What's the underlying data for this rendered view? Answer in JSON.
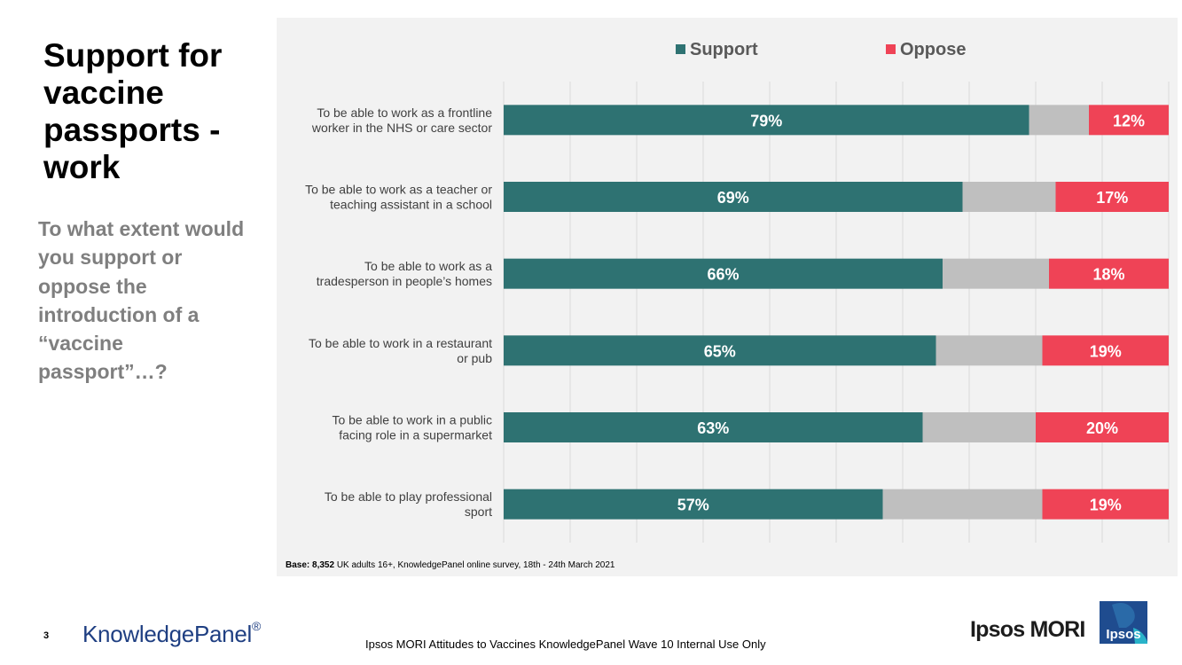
{
  "slide": {
    "title": "Support for vaccine passports - work",
    "question": "To what extent would you support or oppose the introduction of a “vaccine passport”…?",
    "base_bold": "Base: 8,352",
    "base_rest": " UK adults 16+, KnowledgePanel online survey, 18th - 24th March 2021",
    "page_number": "3",
    "footer": "Ipsos MORI Attitudes to Vaccines KnowledgePanel Wave 10 Internal Use Only"
  },
  "logos": {
    "knowledgepanel": "KnowledgePanel",
    "knowledgepanel_mark": "®",
    "ipsos_mori": "Ipsos MORI",
    "ipsos_badge": "Ipsos"
  },
  "colors": {
    "support": "#2e7272",
    "neither": "#bfbfbf",
    "oppose": "#ef4356",
    "panel": "#f2f2f2",
    "grid": "#d9d9d9",
    "ipsos_badge": "#1f4c8f",
    "ipsos_accent": "#29b3c9"
  },
  "chart_data": {
    "type": "bar",
    "orientation": "horizontal",
    "stacked": true,
    "legend_position": "top",
    "grid": true,
    "xlim": [
      0,
      100
    ],
    "categories": [
      "To be able to work as a frontline worker in the NHS or care sector",
      "To be able to work as a teacher or teaching assistant in a school",
      "To be able to work as a tradesperson in people’s homes",
      "To be able to work in a restaurant or pub",
      "To be able to work in a public facing role in a supermarket",
      "To be able to play professional sport"
    ],
    "category_lines": [
      [
        "To be able to work as a frontline",
        "worker in the NHS or care sector"
      ],
      [
        "To be able to work as a teacher or",
        "teaching assistant in a school"
      ],
      [
        "To be able to work as a",
        "tradesperson in people’s homes"
      ],
      [
        "To be able to work in a restaurant",
        "or pub"
      ],
      [
        "To be able to work in a public",
        "facing role in a supermarket"
      ],
      [
        "To be able to play professional",
        "sport"
      ]
    ],
    "series": [
      {
        "name": "Support",
        "values": [
          79,
          69,
          66,
          65,
          63,
          57
        ],
        "labels": [
          "79%",
          "69%",
          "66%",
          "65%",
          "63%",
          "57%"
        ]
      },
      {
        "name": "",
        "values": [
          9,
          14,
          16,
          16,
          17,
          24
        ]
      },
      {
        "name": "Oppose",
        "values": [
          12,
          17,
          18,
          19,
          20,
          19
        ],
        "labels": [
          "12%",
          "17%",
          "18%",
          "19%",
          "20%",
          "19%"
        ]
      }
    ]
  }
}
